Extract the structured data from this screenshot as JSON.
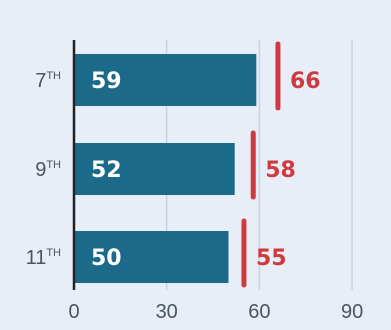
{
  "chart_data": {
    "type": "bar",
    "orientation": "horizontal",
    "categories": [
      {
        "base": "7",
        "suffix": "TH"
      },
      {
        "base": "9",
        "suffix": "TH"
      },
      {
        "base": "11",
        "suffix": "TH"
      }
    ],
    "series": [
      {
        "values": [
          59,
          52,
          50
        ],
        "color": "#1b6a8a"
      },
      {
        "values": [
          66,
          58,
          55
        ],
        "color": "#cf3a3f",
        "style": "target-marker"
      }
    ],
    "xlim": [
      0,
      96
    ],
    "xticks": [
      0,
      30,
      60,
      90
    ],
    "grid": true,
    "colors": {
      "background": "#e8eef8",
      "grid": "#c9d3de",
      "axis": "#222222",
      "bar_label": "#ffffff"
    }
  }
}
